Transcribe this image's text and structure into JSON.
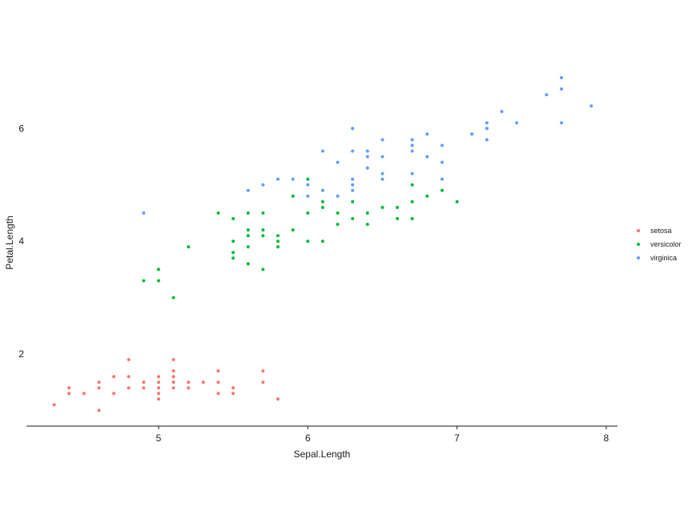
{
  "chart_data": {
    "type": "scatter",
    "xlabel": "Sepal.Length",
    "ylabel": "Petal.Length",
    "xlim": [
      4.2,
      8.1
    ],
    "ylim": [
      0.7,
      7.1
    ],
    "xticks": [
      5,
      6,
      7,
      8
    ],
    "yticks": [
      2,
      4,
      6
    ],
    "grid": false,
    "legend_position": "right",
    "series": [
      {
        "name": "setosa",
        "color": "#F8766D",
        "points": [
          [
            4.3,
            1.1
          ],
          [
            4.4,
            1.3
          ],
          [
            4.4,
            1.4
          ],
          [
            4.5,
            1.3
          ],
          [
            4.6,
            1.0
          ],
          [
            4.6,
            1.4
          ],
          [
            4.6,
            1.5
          ],
          [
            4.7,
            1.3
          ],
          [
            4.7,
            1.6
          ],
          [
            4.8,
            1.4
          ],
          [
            4.8,
            1.6
          ],
          [
            4.8,
            1.9
          ],
          [
            4.9,
            1.4
          ],
          [
            4.9,
            1.5
          ],
          [
            5.0,
            1.2
          ],
          [
            5.0,
            1.3
          ],
          [
            5.0,
            1.4
          ],
          [
            5.0,
            1.5
          ],
          [
            5.0,
            1.6
          ],
          [
            5.1,
            1.4
          ],
          [
            5.1,
            1.5
          ],
          [
            5.1,
            1.6
          ],
          [
            5.1,
            1.7
          ],
          [
            5.1,
            1.9
          ],
          [
            5.2,
            1.4
          ],
          [
            5.2,
            1.5
          ],
          [
            5.3,
            1.5
          ],
          [
            5.4,
            1.3
          ],
          [
            5.4,
            1.5
          ],
          [
            5.4,
            1.7
          ],
          [
            5.5,
            1.3
          ],
          [
            5.5,
            1.4
          ],
          [
            5.7,
            1.5
          ],
          [
            5.7,
            1.7
          ],
          [
            5.8,
            1.2
          ]
        ]
      },
      {
        "name": "versicolor",
        "color": "#00BA38",
        "points": [
          [
            4.9,
            3.3
          ],
          [
            5.0,
            3.3
          ],
          [
            5.0,
            3.5
          ],
          [
            5.1,
            3.0
          ],
          [
            5.2,
            3.9
          ],
          [
            5.4,
            4.5
          ],
          [
            5.5,
            3.7
          ],
          [
            5.5,
            3.8
          ],
          [
            5.5,
            4.0
          ],
          [
            5.5,
            4.4
          ],
          [
            5.6,
            3.6
          ],
          [
            5.6,
            3.9
          ],
          [
            5.6,
            4.1
          ],
          [
            5.6,
            4.2
          ],
          [
            5.6,
            4.5
          ],
          [
            5.7,
            3.5
          ],
          [
            5.7,
            4.1
          ],
          [
            5.7,
            4.2
          ],
          [
            5.7,
            4.5
          ],
          [
            5.8,
            3.9
          ],
          [
            5.8,
            4.0
          ],
          [
            5.8,
            4.1
          ],
          [
            5.9,
            4.2
          ],
          [
            5.9,
            4.8
          ],
          [
            6.0,
            4.0
          ],
          [
            6.0,
            4.5
          ],
          [
            6.0,
            5.1
          ],
          [
            6.1,
            4.0
          ],
          [
            6.1,
            4.6
          ],
          [
            6.1,
            4.7
          ],
          [
            6.2,
            4.3
          ],
          [
            6.2,
            4.5
          ],
          [
            6.3,
            4.4
          ],
          [
            6.3,
            4.7
          ],
          [
            6.4,
            4.3
          ],
          [
            6.4,
            4.5
          ],
          [
            6.5,
            4.6
          ],
          [
            6.6,
            4.4
          ],
          [
            6.6,
            4.6
          ],
          [
            6.7,
            4.4
          ],
          [
            6.7,
            4.7
          ],
          [
            6.7,
            5.0
          ],
          [
            6.8,
            4.8
          ],
          [
            6.9,
            4.9
          ],
          [
            7.0,
            4.7
          ]
        ]
      },
      {
        "name": "virginica",
        "color": "#619CFF",
        "points": [
          [
            4.9,
            4.5
          ],
          [
            5.6,
            4.9
          ],
          [
            5.7,
            5.0
          ],
          [
            5.8,
            5.1
          ],
          [
            5.9,
            5.1
          ],
          [
            6.0,
            4.8
          ],
          [
            6.0,
            5.0
          ],
          [
            6.1,
            4.9
          ],
          [
            6.1,
            5.6
          ],
          [
            6.2,
            4.8
          ],
          [
            6.2,
            5.4
          ],
          [
            6.3,
            4.9
          ],
          [
            6.3,
            5.0
          ],
          [
            6.3,
            5.1
          ],
          [
            6.3,
            5.6
          ],
          [
            6.3,
            6.0
          ],
          [
            6.4,
            5.3
          ],
          [
            6.4,
            5.5
          ],
          [
            6.4,
            5.6
          ],
          [
            6.5,
            5.1
          ],
          [
            6.5,
            5.2
          ],
          [
            6.5,
            5.5
          ],
          [
            6.5,
            5.8
          ],
          [
            6.7,
            5.2
          ],
          [
            6.7,
            5.6
          ],
          [
            6.7,
            5.7
          ],
          [
            6.7,
            5.8
          ],
          [
            6.8,
            5.5
          ],
          [
            6.8,
            5.9
          ],
          [
            6.9,
            5.1
          ],
          [
            6.9,
            5.4
          ],
          [
            6.9,
            5.7
          ],
          [
            7.1,
            5.9
          ],
          [
            7.2,
            5.8
          ],
          [
            7.2,
            6.0
          ],
          [
            7.2,
            6.1
          ],
          [
            7.3,
            6.3
          ],
          [
            7.4,
            6.1
          ],
          [
            7.6,
            6.6
          ],
          [
            7.7,
            6.1
          ],
          [
            7.7,
            6.7
          ],
          [
            7.7,
            6.9
          ],
          [
            7.9,
            6.4
          ]
        ]
      }
    ]
  }
}
